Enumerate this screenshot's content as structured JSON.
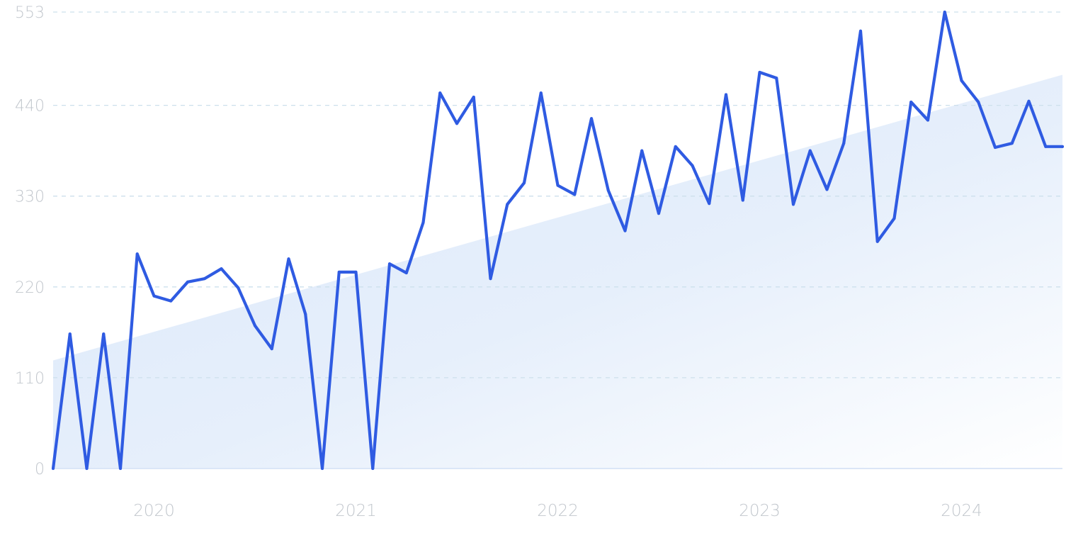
{
  "chart_data": {
    "type": "line",
    "title": "",
    "xlabel": "",
    "ylabel": "",
    "ylim": [
      0,
      553
    ],
    "xlim": [
      "2019-07",
      "2024-07"
    ],
    "grid": true,
    "legend": "none",
    "y_ticks": [
      {
        "value": 0,
        "label": "0"
      },
      {
        "value": 110,
        "label": "110"
      },
      {
        "value": 220,
        "label": "220"
      },
      {
        "value": 330,
        "label": "330"
      },
      {
        "value": 440,
        "label": "440"
      },
      {
        "value": 553,
        "label": "553"
      }
    ],
    "x_ticks": [
      {
        "value": "2020-01",
        "label": "2020"
      },
      {
        "value": "2021-01",
        "label": "2021"
      },
      {
        "value": "2022-01",
        "label": "2022"
      },
      {
        "value": "2023-01",
        "label": "2023"
      },
      {
        "value": "2024-01",
        "label": "2024"
      }
    ],
    "series": [
      {
        "color": "#2f5be2",
        "x": [
          "2019-07",
          "2019-08",
          "2019-09",
          "2019-10",
          "2019-11",
          "2019-12",
          "2020-01",
          "2020-02",
          "2020-03",
          "2020-04",
          "2020-05",
          "2020-06",
          "2020-07",
          "2020-08",
          "2020-09",
          "2020-10",
          "2020-11",
          "2020-12",
          "2021-01",
          "2021-02",
          "2021-03",
          "2021-04",
          "2021-05",
          "2021-06",
          "2021-07",
          "2021-08",
          "2021-09",
          "2021-10",
          "2021-11",
          "2021-12",
          "2022-01",
          "2022-02",
          "2022-03",
          "2022-04",
          "2022-05",
          "2022-06",
          "2022-07",
          "2022-08",
          "2022-09",
          "2022-10",
          "2022-11",
          "2022-12",
          "2023-01",
          "2023-02",
          "2023-03",
          "2023-04",
          "2023-05",
          "2023-06",
          "2023-07",
          "2023-08",
          "2023-09",
          "2023-10",
          "2023-11",
          "2023-12",
          "2024-01",
          "2024-02",
          "2024-03",
          "2024-04",
          "2024-05",
          "2024-06",
          "2024-07"
        ],
        "values": [
          0,
          163,
          0,
          163,
          0,
          260,
          209,
          203,
          226,
          230,
          242,
          219,
          173,
          145,
          254,
          187,
          0,
          238,
          238,
          0,
          248,
          237,
          298,
          455,
          418,
          450,
          230,
          320,
          346,
          455,
          343,
          332,
          424,
          337,
          288,
          385,
          309,
          390,
          367,
          321,
          453,
          325,
          480,
          473,
          320,
          385,
          338,
          394,
          530,
          275,
          303,
          444,
          422,
          553,
          470,
          444,
          389,
          394,
          445,
          390,
          390
        ]
      }
    ],
    "trend": {
      "color": "#dbe8fa",
      "start_value": 131,
      "end_value": 477
    }
  },
  "colors": {
    "line": "#2f5be2",
    "trend_fill": "#dbe8fa",
    "grid": "#cde0ec",
    "baseline": "#dbe6f7",
    "tick_text": "#c2c7cd"
  }
}
